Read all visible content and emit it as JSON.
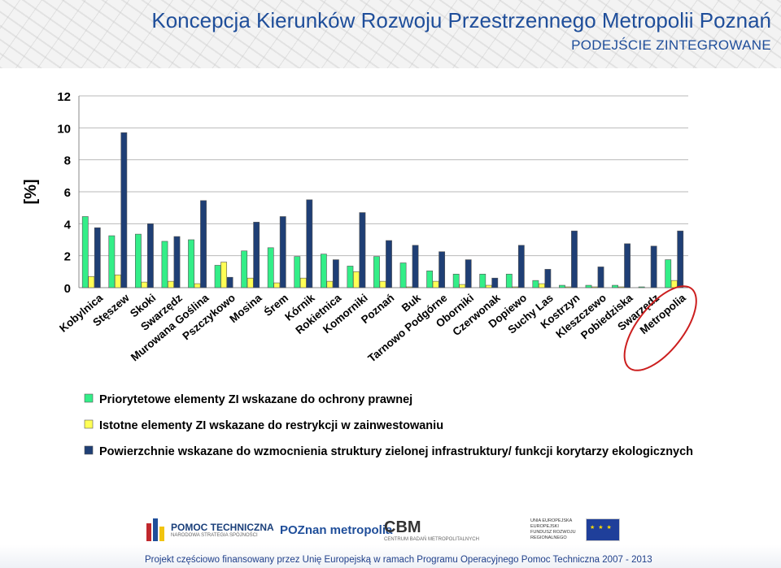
{
  "header": {
    "title": "Koncepcja Kierunków Rozwoju Przestrzennego Metropolii Poznań",
    "subtitle": "PODEJŚCIE ZINTEGROWANE"
  },
  "footer": {
    "logos": {
      "pomoc_title": "POMOC TECHNICZNA",
      "pomoc_sub": "NARODOWA STRATEGIA SPÓJNOŚCI",
      "poznan": "POZnan metropolia",
      "cbm": "CBM",
      "cbm_sub": "CENTRUM BADAŃ METROPOLITALNYCH",
      "eu_text": "UNIA EUROPEJSKA EUROPEJSKI FUNDUSZ ROZWOJU REGIONALNEGO"
    },
    "text": "Projekt częściowo finansowany przez Unię Europejską w ramach Programu Operacyjnego Pomoc Techniczna 2007 - 2013"
  },
  "chart_data": {
    "type": "bar",
    "ylabel": "[%]",
    "ylim": [
      0,
      12
    ],
    "yticks": [
      0,
      2,
      4,
      6,
      8,
      10,
      12
    ],
    "grid": true,
    "legend_position": "bottom",
    "highlight_category": "Metropolia",
    "categories": [
      "Kobylnica",
      "Stęszew",
      "Skoki",
      "Swarzędz",
      "Murowana Goślina",
      "Pszczykowo",
      "Mosina",
      "Śrem",
      "Kórnik",
      "Rokietnica",
      "Komorniki",
      "Poznań",
      "Buk",
      "Tarnowo Podgórne",
      "Oborniki",
      "Czerwonak",
      "Dopiewo",
      "Suchy Las",
      "Kostrzyn",
      "Kleszczewo",
      "Pobiedziska",
      "Swarzędz",
      "Metropolia"
    ],
    "series": [
      {
        "name": "Priorytetowe elementy ZI wskazane do ochrony prawnej",
        "color": "#33ee88",
        "values": [
          4.45,
          3.25,
          3.35,
          2.9,
          3.0,
          1.4,
          2.3,
          2.5,
          1.95,
          2.1,
          1.35,
          1.95,
          1.55,
          1.05,
          0.85,
          0.85,
          0.85,
          0.45,
          0.15,
          0.15,
          0.15,
          0.05,
          1.75
        ]
      },
      {
        "name": "Istotne elementy ZI wskazane do restrykcji w zainwestowaniu",
        "color": "#ffff55",
        "values": [
          0.7,
          0.8,
          0.35,
          0.4,
          0.25,
          1.6,
          0.6,
          0.3,
          0.6,
          0.4,
          1.0,
          0.4,
          0.05,
          0.4,
          0.2,
          0.15,
          0.05,
          0.25,
          0.05,
          0.05,
          0.05,
          0.0,
          0.45
        ]
      },
      {
        "name": "Powierzchnie wskazane do wzmocnienia struktury zielonej infrastruktury/ funkcji korytarzy ekologicznych",
        "color": "#1f3f75",
        "values": [
          3.75,
          9.7,
          4.0,
          3.2,
          5.45,
          0.65,
          4.1,
          4.45,
          5.5,
          1.75,
          4.7,
          2.95,
          2.65,
          2.25,
          1.75,
          0.6,
          2.65,
          1.15,
          3.55,
          1.3,
          2.75,
          2.6,
          3.55
        ]
      }
    ]
  }
}
